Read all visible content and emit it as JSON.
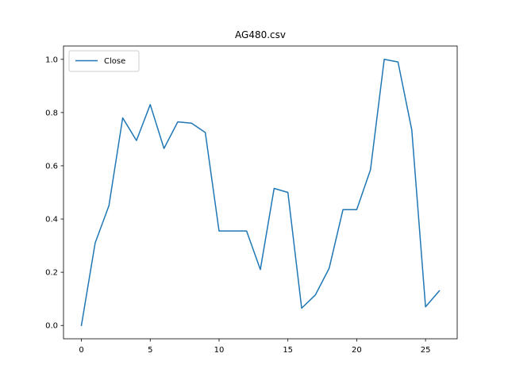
{
  "chart_data": {
    "type": "line",
    "title": "AG480.csv",
    "xlabel": "",
    "ylabel": "",
    "xlim": [
      -1.3,
      27.3
    ],
    "ylim": [
      -0.05,
      1.05
    ],
    "x_ticks": [
      0,
      5,
      10,
      15,
      20,
      25
    ],
    "y_ticks": [
      0.0,
      0.2,
      0.4,
      0.6,
      0.8,
      1.0
    ],
    "x_tick_labels": [
      "0",
      "5",
      "10",
      "15",
      "20",
      "25"
    ],
    "y_tick_labels": [
      "0.0",
      "0.2",
      "0.4",
      "0.6",
      "0.8",
      "1.0"
    ],
    "grid": false,
    "legend_position": "upper-left",
    "series": [
      {
        "name": "Close",
        "color": "#1f77b4",
        "x": [
          0,
          1,
          2,
          3,
          4,
          5,
          6,
          7,
          8,
          9,
          10,
          11,
          12,
          13,
          14,
          15,
          16,
          17,
          18,
          19,
          20,
          21,
          22,
          23,
          24,
          25,
          26
        ],
        "values": [
          0.0,
          0.31,
          0.45,
          0.78,
          0.695,
          0.83,
          0.665,
          0.765,
          0.76,
          0.725,
          0.355,
          0.355,
          0.355,
          0.21,
          0.515,
          0.5,
          0.065,
          0.115,
          0.215,
          0.435,
          0.435,
          0.585,
          1.0,
          0.99,
          0.735,
          0.07,
          0.13
        ]
      }
    ]
  }
}
